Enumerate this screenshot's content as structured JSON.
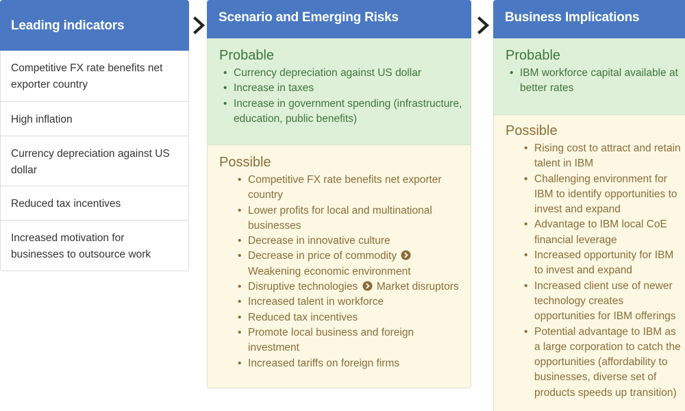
{
  "leading": {
    "title": "Leading indicators",
    "items": [
      "Competitive FX rate benefits net exporter country",
      "High inflation",
      "Currency depreciation against US dollar",
      "Reduced tax incentives",
      "Increased motivation for businesses to outsource work"
    ]
  },
  "scenario": {
    "title": "Scenario and Emerging Risks",
    "probable_title": "Probable",
    "probable": [
      "Currency depreciation against US dollar",
      "Increase in taxes",
      "Increase in government spending (infrastructure, education, public benefits)"
    ],
    "possible_title": "Possible",
    "possible": [
      "Competitive FX rate benefits net exporter country",
      "Lower profits for local and multinational businesses",
      "Decrease in innovative culture",
      {
        "a": "Decrease in price of commodity",
        "b": "Weakening economic environment"
      },
      {
        "a": "Disruptive technologies",
        "b": "Market disruptors"
      },
      "Increased talent in workforce",
      "Reduced tax incentives",
      "Promote local business and foreign investment",
      "Increased tariffs on foreign firms"
    ]
  },
  "business": {
    "title": "Business Implications",
    "probable_title": "Probable",
    "probable": [
      "IBM workforce capital available at better rates"
    ],
    "possible_title": "Possible",
    "possible": [
      "Rising cost to attract and retain talent in IBM",
      "Challenging environment for IBM to identify opportunities to invest and expand",
      "Advantage to IBM local CoE financial leverage",
      "Increased opportunity for IBM to invest and expand",
      "Increased client use of newer technology creates opportunities for IBM offerings",
      "Potential advantage to IBM as a large corporation to catch the opportunities (affordability to businesses, diverse set of products speeds up transition)"
    ]
  },
  "icons": {
    "flow_arrow": "chevron-right-icon",
    "inline_arrow": "circle-chevron-right-icon"
  },
  "colors": {
    "header": "#4a78c2",
    "probable_bg": "#dff0d8",
    "probable_text": "#3c763d",
    "possible_bg": "#fcf8e3",
    "possible_text": "#8a6d3b"
  }
}
